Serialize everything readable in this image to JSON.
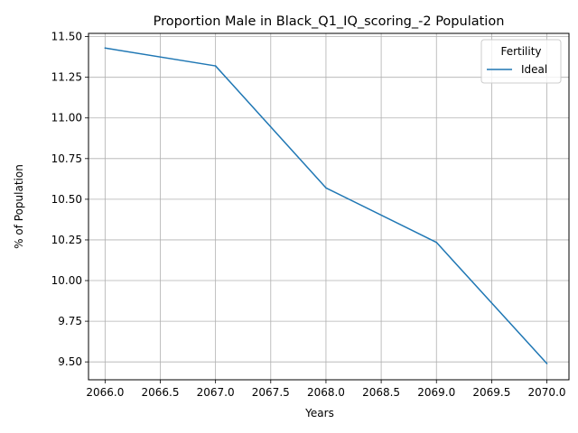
{
  "chart_data": {
    "type": "line",
    "title": "Proportion Male in Black_Q1_IQ_scoring_-2 Population",
    "xlabel": "Years",
    "ylabel": "% of Population",
    "xlim": [
      2065.85,
      2070.2
    ],
    "ylim": [
      9.39,
      11.52
    ],
    "x_ticks": [
      2066.0,
      2066.5,
      2067.0,
      2067.5,
      2068.0,
      2068.5,
      2069.0,
      2069.5,
      2070.0
    ],
    "x_tick_labels": [
      "2066.0",
      "2066.5",
      "2067.0",
      "2067.5",
      "2068.0",
      "2068.5",
      "2069.0",
      "2069.5",
      "2070.0"
    ],
    "y_ticks": [
      9.5,
      9.75,
      10.0,
      10.25,
      10.5,
      10.75,
      11.0,
      11.25,
      11.5
    ],
    "y_tick_labels": [
      "9.50",
      "9.75",
      "10.00",
      "10.25",
      "10.50",
      "10.75",
      "11.00",
      "11.25",
      "11.50"
    ],
    "grid": true,
    "legend": {
      "title": "Fertility",
      "position": "top-right"
    },
    "series": [
      {
        "name": "Ideal",
        "color": "#1f77b4",
        "x": [
          2066,
          2067,
          2068,
          2069,
          2070
        ],
        "y": [
          11.43,
          11.32,
          10.57,
          10.235,
          9.49
        ]
      }
    ]
  }
}
